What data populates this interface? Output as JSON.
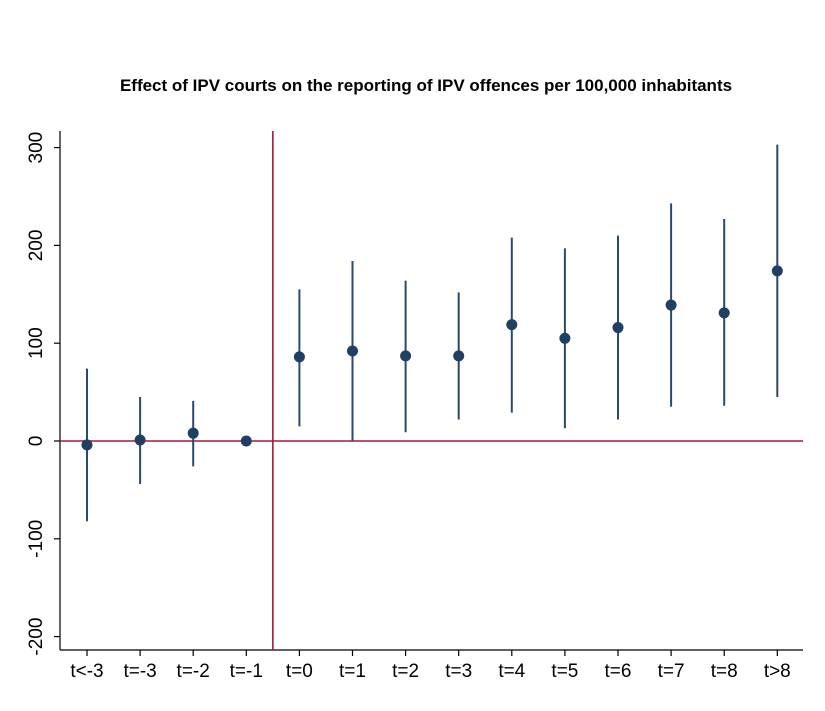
{
  "chart_data": {
    "type": "scatter",
    "title": "Effect of IPV courts on the reporting of IPV offences per 100,000 inhabitants",
    "xlabel": "",
    "ylabel": "",
    "categories": [
      "t<-3",
      "t=-3",
      "t=-2",
      "t=-1",
      "t=0",
      "t=1",
      "t=2",
      "t=3",
      "t=4",
      "t=5",
      "t=6",
      "t=7",
      "t=8",
      "t>8"
    ],
    "estimates": [
      -4,
      1,
      8,
      0,
      86,
      92,
      87,
      87,
      119,
      105,
      116,
      139,
      131,
      174
    ],
    "ci_low": [
      -82,
      -44,
      -26,
      0,
      15,
      0,
      9,
      22,
      29,
      13,
      22,
      35,
      36,
      45
    ],
    "ci_high": [
      74,
      45,
      41,
      0,
      155,
      184,
      164,
      152,
      208,
      197,
      210,
      243,
      227,
      303
    ],
    "yticks": [
      -200,
      -100,
      0,
      100,
      200,
      300
    ],
    "ylim": [
      -213,
      318
    ],
    "reference_lines": {
      "horizontal_at": 0,
      "vertical_between": [
        "t=-1",
        "t=0"
      ]
    },
    "colors": {
      "marker": "#1f3f63",
      "ci": "#2b4a6b",
      "reference": "#a8193b",
      "axis": "#000000"
    },
    "grid": false,
    "legend": "none"
  }
}
